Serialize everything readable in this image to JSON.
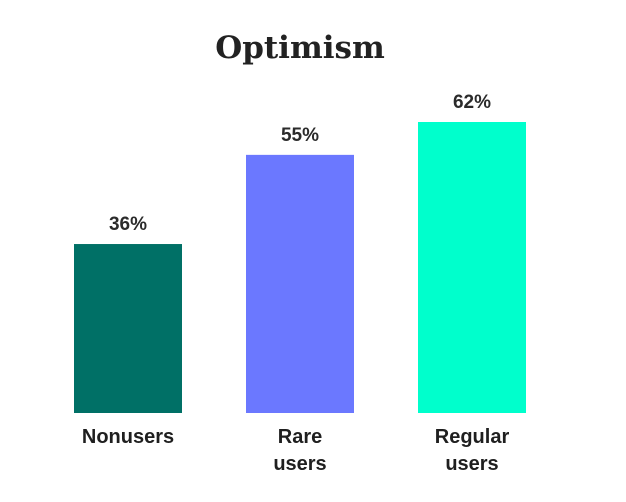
{
  "chart_data": {
    "type": "bar",
    "title": "Optimism",
    "xlabel": "",
    "ylabel": "",
    "categories": [
      [
        "Nonusers"
      ],
      [
        "Rare",
        "users"
      ],
      [
        "Regular",
        "users"
      ]
    ],
    "values": [
      36,
      55,
      62
    ],
    "value_labels": [
      "36%",
      "55%",
      "62%"
    ],
    "colors": [
      "#007066",
      "#6B78FF",
      "#00FFCC"
    ],
    "ylim": [
      0,
      62
    ],
    "grid": false,
    "legend": "none"
  }
}
